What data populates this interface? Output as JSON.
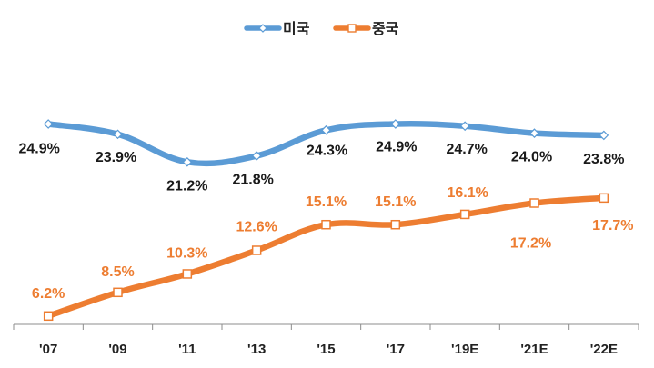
{
  "chart_data": {
    "type": "line",
    "categories": [
      "'07",
      "'09",
      "'11",
      "'13",
      "'15",
      "'17",
      "'19E",
      "'21E",
      "'22E"
    ],
    "ylim": [
      0,
      30
    ],
    "grid": false,
    "legend_position": "top-center",
    "series": [
      {
        "name": "미국",
        "color": "#5B9BD5",
        "marker": "diamond",
        "values": [
          24.9,
          23.9,
          21.2,
          21.8,
          24.3,
          24.9,
          24.7,
          24.0,
          23.8
        ],
        "labels": [
          "24.9%",
          "23.9%",
          "21.2%",
          "21.8%",
          "24.3%",
          "24.9%",
          "24.7%",
          "24.0%",
          "23.8%"
        ],
        "label_color": "#1a1a1a"
      },
      {
        "name": "중국",
        "color": "#ED7D31",
        "marker": "square",
        "values": [
          6.2,
          8.5,
          10.3,
          12.6,
          15.1,
          15.1,
          16.1,
          17.2,
          17.7
        ],
        "labels": [
          "6.2%",
          "8.5%",
          "10.3%",
          "12.6%",
          "15.1%",
          "15.1%",
          "16.1%",
          "17.2%",
          "17.7%"
        ],
        "label_color": "#ED7D31"
      }
    ]
  }
}
